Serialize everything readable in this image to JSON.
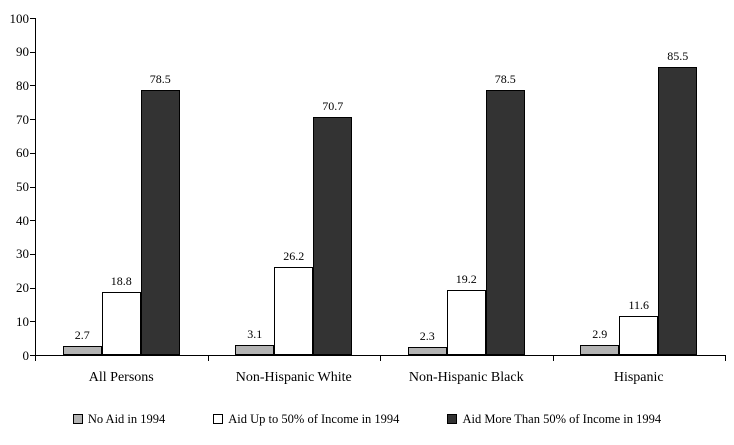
{
  "chart_data": {
    "type": "bar",
    "title": "",
    "xlabel": "",
    "ylabel": "",
    "categories": [
      "All Persons",
      "Non-Hispanic White",
      "Non-Hispanic Black",
      "Hispanic"
    ],
    "series": [
      {
        "name": "No Aid in 1994",
        "color": "#b3b3b3",
        "values": [
          2.7,
          3.1,
          2.3,
          2.9
        ]
      },
      {
        "name": "Aid Up to 50% of Income in 1994",
        "color": "#ffffff",
        "values": [
          18.8,
          26.2,
          19.2,
          11.6
        ]
      },
      {
        "name": "Aid More Than 50% of Income in 1994",
        "color": "#333333",
        "values": [
          78.5,
          70.7,
          78.5,
          85.5
        ]
      }
    ],
    "ylim": [
      0,
      100
    ],
    "yticks": [
      0,
      10,
      20,
      30,
      40,
      50,
      60,
      70,
      80,
      90,
      100
    ],
    "grid": false,
    "legend_position": "bottom",
    "bar_border_color": "#000000",
    "value_labels_shown": true
  }
}
